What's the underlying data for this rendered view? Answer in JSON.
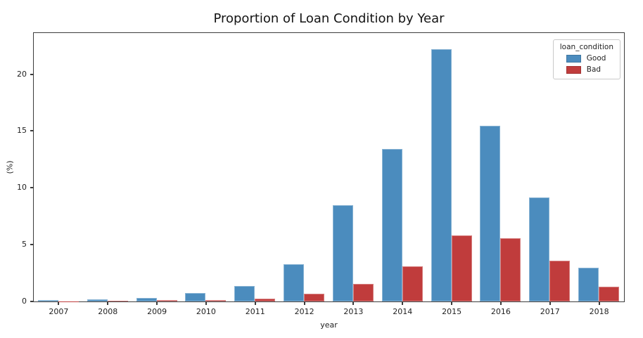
{
  "figure": {
    "background": "#ffffff"
  },
  "chart_data": {
    "type": "bar",
    "title": "Proportion of Loan Condition by Year",
    "xlabel": "year",
    "ylabel": "(%)",
    "categories": [
      "2007",
      "2008",
      "2009",
      "2010",
      "2011",
      "2012",
      "2013",
      "2014",
      "2015",
      "2016",
      "2017",
      "2018"
    ],
    "series": [
      {
        "name": "Good",
        "color": "#4b8cbe",
        "values": [
          0.1,
          0.16,
          0.33,
          0.75,
          1.35,
          3.3,
          8.5,
          13.45,
          22.25,
          15.5,
          9.15,
          2.95
        ]
      },
      {
        "name": "Bad",
        "color": "#c03c3c",
        "values": [
          0.01,
          0.07,
          0.1,
          0.12,
          0.26,
          0.7,
          1.55,
          3.1,
          5.8,
          5.55,
          3.6,
          1.3
        ]
      }
    ],
    "ylim": [
      0,
      23.6
    ],
    "yticks": [
      0,
      5,
      10,
      15,
      20
    ],
    "grid": false,
    "legend": {
      "title": "loan_condition",
      "position": "upper right"
    }
  }
}
